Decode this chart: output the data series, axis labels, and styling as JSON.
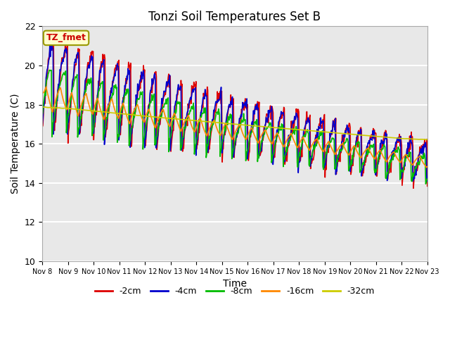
{
  "title": "Tonzi Soil Temperatures Set B",
  "xlabel": "Time",
  "ylabel": "Soil Temperature (C)",
  "ylim": [
    10,
    22
  ],
  "bg_color": "#e8e8e8",
  "annotation_text": "TZ_fmet",
  "annotation_bg": "#ffffcc",
  "annotation_border": "#999900",
  "grid_color": "white",
  "xtick_labels": [
    "Nov 8",
    "Nov 9",
    "Nov 10",
    "Nov 11",
    "Nov 12",
    "Nov 13",
    "Nov 14",
    "Nov 15",
    "Nov 16",
    "Nov 17",
    "Nov 18",
    "Nov 19",
    "Nov 20",
    "Nov 21",
    "Nov 22",
    "Nov 23"
  ],
  "legend_labels": [
    "-2cm",
    "-4cm",
    "-8cm",
    "-16cm",
    "-32cm"
  ],
  "legend_colors": [
    "#dd0000",
    "#0000cc",
    "#00bb00",
    "#ff8800",
    "#cccc00"
  ],
  "line_colors": [
    "#dd0000",
    "#0000cc",
    "#00bb00",
    "#ff8800",
    "#cccc00"
  ],
  "line_width": 1.2
}
